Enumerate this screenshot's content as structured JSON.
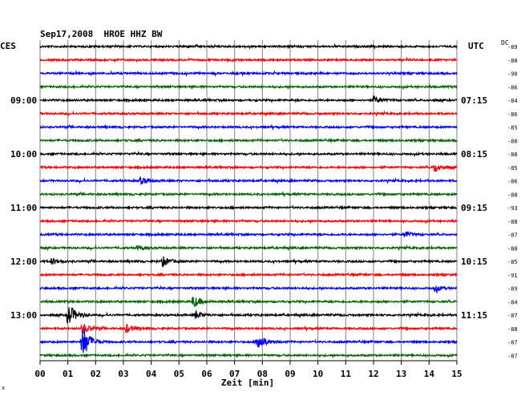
{
  "header": {
    "title": "Sep17,2008  HROE HHZ BW",
    "left_timezone": "CES",
    "right_timezone": "UTC",
    "dc_label": "DC"
  },
  "chart_data": {
    "type": "line",
    "title": "Sep17,2008  HROE HHZ BW",
    "xlabel": "Zeit [min]",
    "xlim": [
      0,
      15
    ],
    "x_ticks": [
      "00",
      "01",
      "02",
      "03",
      "04",
      "05",
      "06",
      "07",
      "08",
      "09",
      "10",
      "11",
      "12",
      "13",
      "14",
      "15"
    ],
    "trace_colors": [
      "#000000",
      "#ff0000",
      "#0000ff",
      "#006400"
    ],
    "left_time_labels": [
      {
        "row": 4,
        "text": "09:00"
      },
      {
        "row": 8,
        "text": "10:00"
      },
      {
        "row": 12,
        "text": "11:00"
      },
      {
        "row": 16,
        "text": "12:00"
      },
      {
        "row": 20,
        "text": "13:00"
      }
    ],
    "right_time_labels": [
      {
        "row": 0,
        "text": "UTC"
      },
      {
        "row": 4,
        "text": "07:15"
      },
      {
        "row": 8,
        "text": "08:15"
      },
      {
        "row": 12,
        "text": "09:15"
      },
      {
        "row": 16,
        "text": "10:15"
      },
      {
        "row": 20,
        "text": "11:15"
      }
    ],
    "dc_offsets": [
      "-89",
      "-88",
      "-90",
      "-86",
      "-84",
      "-86",
      "-85",
      "-88",
      "-88",
      "-85",
      "-86",
      "-88",
      "-93",
      "-88",
      "-87",
      "-88",
      "-85",
      "-91",
      "-89",
      "-84",
      "-87",
      "-88",
      "-87",
      "-87"
    ],
    "events": [
      {
        "row": 4,
        "minute": 12.0,
        "amp": 0.8
      },
      {
        "row": 9,
        "minute": 14.2,
        "amp": 1.0
      },
      {
        "row": 10,
        "minute": 3.6,
        "amp": 0.7
      },
      {
        "row": 14,
        "minute": 13.1,
        "amp": 0.7
      },
      {
        "row": 15,
        "minute": 3.5,
        "amp": 0.5
      },
      {
        "row": 16,
        "minute": 0.4,
        "amp": 0.7
      },
      {
        "row": 16,
        "minute": 4.4,
        "amp": 1.1
      },
      {
        "row": 18,
        "minute": 14.2,
        "amp": 0.7
      },
      {
        "row": 19,
        "minute": 5.5,
        "amp": 1.4
      },
      {
        "row": 20,
        "minute": 1.0,
        "amp": 2.6
      },
      {
        "row": 20,
        "minute": 5.6,
        "amp": 0.8
      },
      {
        "row": 21,
        "minute": 1.5,
        "amp": 1.2
      },
      {
        "row": 21,
        "minute": 3.1,
        "amp": 0.9
      },
      {
        "row": 22,
        "minute": 1.5,
        "amp": 4.2
      },
      {
        "row": 22,
        "minute": 7.8,
        "amp": 2.2
      }
    ]
  }
}
